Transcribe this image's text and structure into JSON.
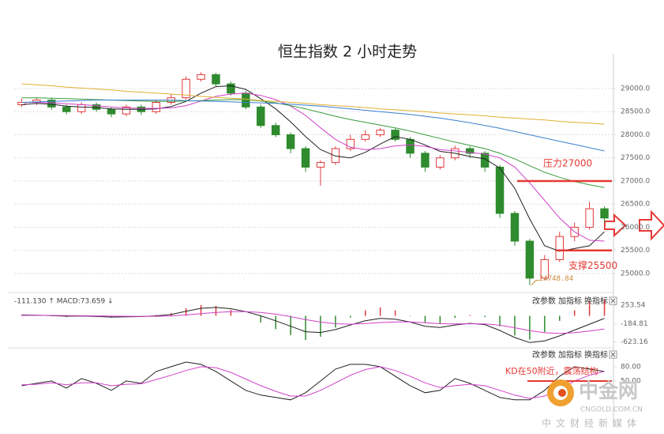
{
  "chart_data": [
    {
      "type": "candlestick",
      "title": "恒生指数 2 小时走势",
      "categories": [
        null,
        null,
        null,
        null,
        null,
        null,
        null,
        null,
        null,
        null,
        null,
        null,
        null,
        null,
        null,
        null,
        null,
        null,
        null,
        null,
        null,
        null,
        null,
        null,
        null,
        null,
        null,
        null,
        null,
        null,
        null,
        null,
        null,
        null,
        null,
        null,
        null,
        null,
        null,
        null
      ],
      "open": [
        28650,
        28700,
        28750,
        28600,
        28500,
        28650,
        28550,
        28450,
        28600,
        28500,
        28700,
        28800,
        29200,
        29300,
        29100,
        28900,
        28600,
        28200,
        28000,
        27700,
        27300,
        27400,
        27700,
        27900,
        28000,
        28100,
        27900,
        27600,
        27300,
        27500,
        27700,
        27600,
        27300,
        26300,
        25700,
        24900,
        25300,
        25800,
        26000,
        26400
      ],
      "high": [
        28780,
        28800,
        28800,
        28650,
        28700,
        28700,
        28600,
        28650,
        28650,
        28760,
        28880,
        29260,
        29350,
        29340,
        29150,
        28950,
        28650,
        28260,
        28050,
        27750,
        27450,
        27750,
        28000,
        28100,
        28150,
        28150,
        27950,
        27650,
        27560,
        27760,
        27750,
        27650,
        27350,
        26350,
        25750,
        25400,
        25900,
        26100,
        26550,
        26450
      ],
      "low": [
        28600,
        28640,
        28540,
        28440,
        28450,
        28500,
        28380,
        28400,
        28430,
        28450,
        28650,
        28760,
        29150,
        29050,
        28850,
        28550,
        28150,
        27950,
        27600,
        27200,
        26900,
        27350,
        27650,
        27850,
        27950,
        27850,
        27500,
        27200,
        27250,
        27450,
        27500,
        27200,
        26200,
        25600,
        24748.84,
        24850,
        25250,
        25700,
        25950,
        26100
      ],
      "close": [
        28700,
        28750,
        28600,
        28500,
        28650,
        28550,
        28450,
        28600,
        28500,
        28700,
        28800,
        29200,
        29300,
        29100,
        28900,
        28600,
        28200,
        28000,
        27700,
        27300,
        27400,
        27700,
        27900,
        28000,
        28100,
        27900,
        27600,
        27300,
        27500,
        27700,
        27600,
        27300,
        26300,
        25700,
        24900,
        25300,
        25800,
        26000,
        26400,
        26200
      ],
      "up_color": "#e0383a",
      "down_color": "#2e8b2e",
      "series": [
        {
          "color": "#222222",
          "values": [
            28650,
            28680,
            28660,
            28620,
            28600,
            28590,
            28560,
            28550,
            28550,
            28560,
            28610,
            28720,
            28900,
            29040,
            29060,
            28980,
            28780,
            28560,
            28280,
            27960,
            27680,
            27540,
            27500,
            27620,
            27800,
            27960,
            27900,
            27780,
            27640,
            27600,
            27530,
            27480,
            27280,
            26840,
            26180,
            25600,
            25480,
            25540,
            25600,
            25900
          ]
        },
        {
          "color": "#d040c8",
          "values": [
            28700,
            28700,
            28690,
            28670,
            28650,
            28630,
            28600,
            28580,
            28570,
            28570,
            28580,
            28630,
            28730,
            28830,
            28880,
            28900,
            28850,
            28760,
            28620,
            28420,
            28150,
            27900,
            27730,
            27680,
            27700,
            27760,
            27780,
            27750,
            27680,
            27650,
            27620,
            27580,
            27500,
            27300,
            26960,
            26580,
            26200,
            25900,
            25720,
            25700
          ]
        },
        {
          "color": "#3a9a3a",
          "values": [
            28800,
            28800,
            28790,
            28780,
            28770,
            28760,
            28750,
            28740,
            28730,
            28720,
            28720,
            28730,
            28740,
            28750,
            28760,
            28760,
            28730,
            28690,
            28630,
            28560,
            28480,
            28400,
            28330,
            28270,
            28210,
            28150,
            28080,
            28000,
            27920,
            27840,
            27770,
            27700,
            27600,
            27480,
            27330,
            27190,
            27080,
            26990,
            26920,
            26860
          ]
        },
        {
          "color": "#3a7fd0",
          "values": [
            28700,
            28710,
            28720,
            28730,
            28740,
            28750,
            28750,
            28750,
            28750,
            28750,
            28750,
            28740,
            28730,
            28720,
            28710,
            28700,
            28690,
            28680,
            28660,
            28640,
            28620,
            28590,
            28560,
            28530,
            28500,
            28470,
            28440,
            28400,
            28360,
            28310,
            28260,
            28200,
            28140,
            28070,
            28000,
            27930,
            27860,
            27790,
            27720,
            27650
          ]
        },
        {
          "color": "#e0b030",
          "values": [
            29100,
            29080,
            29060,
            29030,
            29010,
            28990,
            28970,
            28940,
            28920,
            28900,
            28880,
            28860,
            28830,
            28810,
            28790,
            28770,
            28740,
            28720,
            28700,
            28680,
            28650,
            28630,
            28610,
            28590,
            28560,
            28540,
            28520,
            28500,
            28470,
            28450,
            28430,
            28410,
            28380,
            28360,
            28340,
            28320,
            28290,
            28270,
            28250,
            28230
          ]
        }
      ],
      "ylim": [
        24675,
        29290
      ],
      "yticks": [
        {
          "value": 25000,
          "label": "25000.0"
        },
        {
          "value": 25500,
          "label": "25500.0"
        },
        {
          "value": 26000,
          "label": "26000.0"
        },
        {
          "value": 26500,
          "label": "26500.0"
        },
        {
          "value": 27000,
          "label": "27000.0"
        },
        {
          "value": 27500,
          "label": "27500.0"
        },
        {
          "value": 28000,
          "label": "28000.0"
        },
        {
          "value": 28500,
          "label": "28500.0"
        },
        {
          "value": 29000,
          "label": "29000.0"
        }
      ],
      "grid": true,
      "annotations": [
        {
          "text": "压力27000",
          "value": 27000,
          "color": "#e53935"
        },
        {
          "text": "支撑25500",
          "value": 25500,
          "color": "#e53935"
        }
      ]
    },
    {
      "type": "macd",
      "legend": "-111.130 ↑ MACD:73.659 ↓",
      "buttons": [
        "改参数",
        "加指标",
        "换指标"
      ],
      "values": [
        20,
        6,
        -10,
        -30,
        -14,
        -26,
        -44,
        -26,
        -12,
        22,
        66,
        180,
        256,
        236,
        140,
        0,
        -160,
        -320,
        -460,
        -580,
        -500,
        -280,
        -40,
        130,
        200,
        130,
        -10,
        -170,
        -180,
        -50,
        20,
        -30,
        -250,
        -470,
        -570,
        -390,
        -120,
        130,
        330,
        390
      ],
      "up_color": "#e0383a",
      "down_color": "#2e8b2e",
      "series": [
        {
          "color": "#222222",
          "values": [
            20,
            15,
            5,
            -10,
            -5,
            -15,
            -30,
            -25,
            -20,
            0,
            30,
            110,
            180,
            200,
            170,
            100,
            0,
            -120,
            -250,
            -380,
            -400,
            -330,
            -220,
            -120,
            -60,
            -80,
            -150,
            -250,
            -280,
            -220,
            -180,
            -210,
            -350,
            -520,
            -640,
            -600,
            -480,
            -340,
            -200,
            -60
          ]
        },
        {
          "color": "#d040c8",
          "values": [
            10,
            12,
            10,
            5,
            2,
            -2,
            -8,
            -12,
            -14,
            -11,
            -3,
            20,
            52,
            82,
            100,
            100,
            80,
            40,
            -20,
            -90,
            -150,
            -190,
            -200,
            -185,
            -160,
            -145,
            -145,
            -165,
            -190,
            -195,
            -190,
            -195,
            -225,
            -285,
            -355,
            -405,
            -420,
            -405,
            -365,
            -315
          ]
        }
      ],
      "ylim": [
        -728,
        463
      ],
      "yticks": [
        253.54,
        -184.81,
        -623.16
      ]
    },
    {
      "type": "kd",
      "buttons": [
        "改参数",
        "加指标",
        "换指标"
      ],
      "series": [
        {
          "color": "#222222",
          "values": [
            40,
            45,
            50,
            35,
            55,
            45,
            30,
            50,
            45,
            70,
            80,
            90,
            85,
            70,
            50,
            30,
            20,
            15,
            10,
            25,
            50,
            75,
            85,
            85,
            80,
            60,
            40,
            25,
            30,
            55,
            45,
            30,
            15,
            10,
            10,
            30,
            60,
            80,
            75,
            70
          ]
        },
        {
          "color": "#d040c8",
          "values": [
            42,
            43,
            46,
            42,
            46,
            46,
            40,
            43,
            44,
            53,
            62,
            72,
            80,
            78,
            68,
            54,
            40,
            28,
            18,
            18,
            30,
            46,
            62,
            74,
            80,
            72,
            60,
            46,
            36,
            40,
            43,
            40,
            30,
            20,
            13,
            18,
            32,
            50,
            62,
            70
          ]
        }
      ],
      "ylim": [
        3,
        115
      ],
      "yticks": [
        {
          "value": 80,
          "label": "80.00"
        },
        {
          "value": 50,
          "label": "50.00"
        }
      ],
      "annotation": {
        "text": "KD在50附近，震荡结构",
        "color": "#e53935"
      }
    }
  ],
  "watermark": {
    "name": "中金网",
    "url": "CNGOLD.COM.CN",
    "slogan": "中文财经新媒体"
  }
}
